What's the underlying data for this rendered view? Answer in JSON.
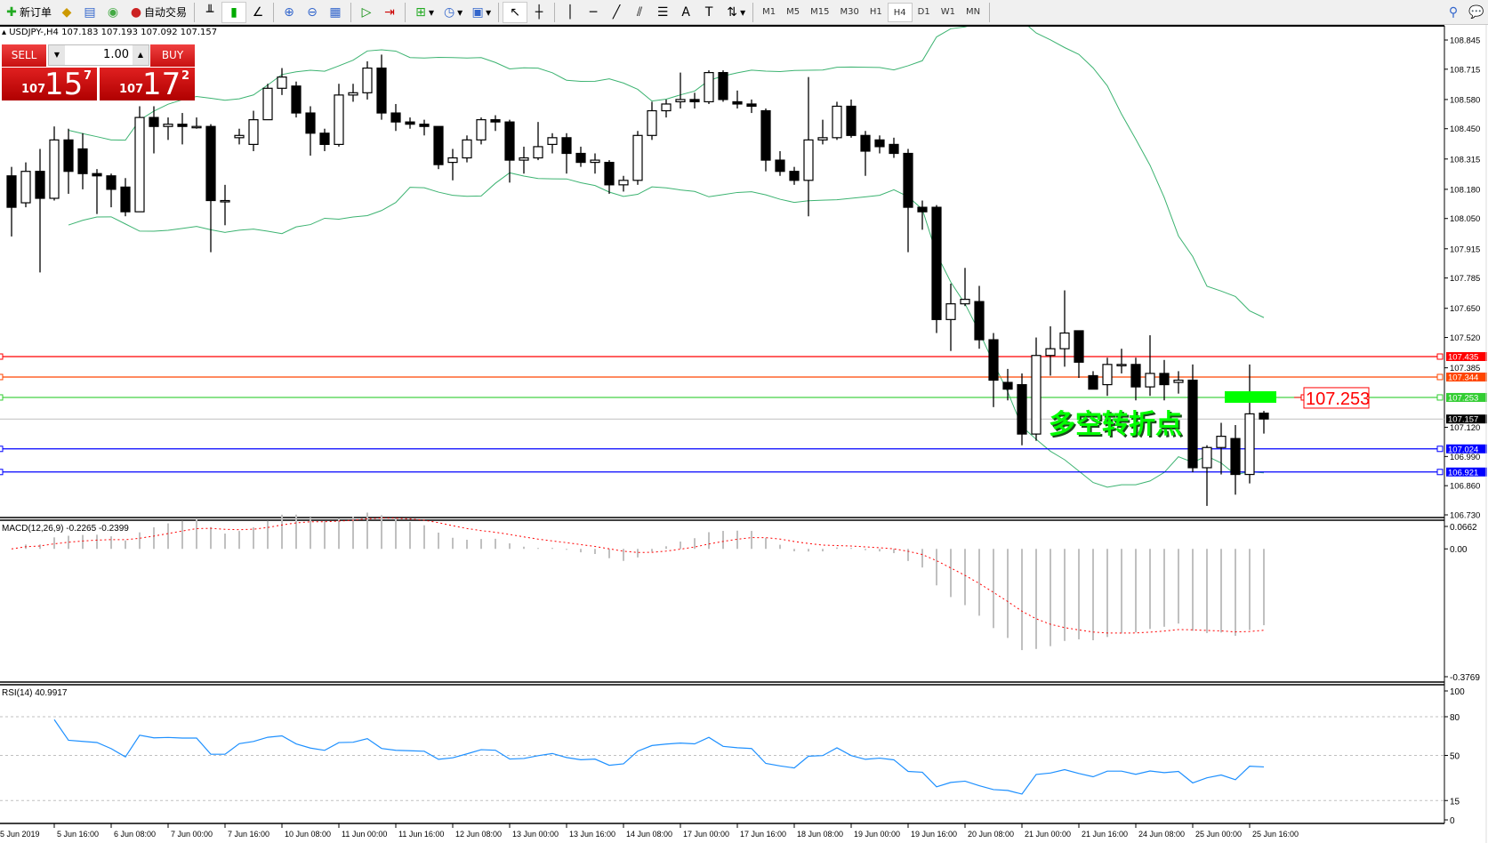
{
  "toolbar": {
    "new_order": "新订单",
    "auto_trading": "自动交易",
    "timeframes": [
      "M1",
      "M5",
      "M15",
      "M30",
      "H1",
      "H4",
      "D1",
      "W1",
      "MN"
    ],
    "active_timeframe": "H4"
  },
  "header": {
    "symbol": "USDJPY-,H4",
    "open": "107.183",
    "high": "107.193",
    "low": "107.092",
    "close": "107.157"
  },
  "one_click": {
    "sell_label": "SELL",
    "buy_label": "BUY",
    "lot": "1.00",
    "sell_price": {
      "big": "107",
      "main": "15",
      "small": "7"
    },
    "buy_price": {
      "big": "107",
      "main": "17",
      "small": "2"
    }
  },
  "indicators": {
    "macd_label": "MACD(12,26,9) -0.2265 -0.2399",
    "rsi_label": "RSI(14) 40.9917"
  },
  "annotation": {
    "text": "多空转折点",
    "price_label": "107.253",
    "color": "#00ff00"
  },
  "chart_data": {
    "type": "candlestick",
    "symbol": "USDJPY",
    "timeframe": "H4",
    "ylim": [
      106.73,
      108.845
    ],
    "price_ticks": [
      "108.845",
      "108.715",
      "108.580",
      "108.450",
      "108.315",
      "108.180",
      "108.050",
      "107.915",
      "107.785",
      "107.650",
      "107.520",
      "107.385",
      "107.120",
      "106.990",
      "106.860",
      "106.730"
    ],
    "time_labels": [
      "5 Jun 2019",
      "5 Jun 16:00",
      "6 Jun 08:00",
      "7 Jun 00:00",
      "7 Jun 16:00",
      "10 Jun 08:00",
      "11 Jun 00:00",
      "11 Jun 16:00",
      "12 Jun 08:00",
      "13 Jun 00:00",
      "13 Jun 16:00",
      "14 Jun 08:00",
      "17 Jun 00:00",
      "17 Jun 16:00",
      "18 Jun 08:00",
      "19 Jun 00:00",
      "19 Jun 16:00",
      "20 Jun 08:00",
      "21 Jun 00:00",
      "21 Jun 16:00",
      "24 Jun 08:00",
      "25 Jun 00:00",
      "25 Jun 16:00"
    ],
    "ohlc": [
      [
        108.24,
        108.28,
        107.97,
        108.1
      ],
      [
        108.12,
        108.3,
        108.1,
        108.26
      ],
      [
        108.26,
        108.36,
        107.81,
        108.14
      ],
      [
        108.14,
        108.46,
        108.13,
        108.4
      ],
      [
        108.4,
        108.45,
        108.16,
        108.26
      ],
      [
        108.36,
        108.43,
        108.18,
        108.25
      ],
      [
        108.25,
        108.27,
        108.07,
        108.24
      ],
      [
        108.24,
        108.25,
        108.1,
        108.18
      ],
      [
        108.19,
        108.23,
        108.06,
        108.08
      ],
      [
        108.08,
        108.55,
        108.08,
        108.5
      ],
      [
        108.5,
        108.55,
        108.34,
        108.46
      ],
      [
        108.46,
        108.5,
        108.4,
        108.47
      ],
      [
        108.47,
        108.52,
        108.38,
        108.46
      ],
      [
        108.46,
        108.5,
        108.45,
        108.46
      ],
      [
        108.46,
        108.47,
        107.9,
        108.13
      ],
      [
        108.13,
        108.2,
        108.02,
        108.13
      ],
      [
        108.41,
        108.45,
        108.38,
        108.42
      ],
      [
        108.38,
        108.53,
        108.35,
        108.49
      ],
      [
        108.49,
        108.65,
        108.49,
        108.63
      ],
      [
        108.63,
        108.72,
        108.6,
        108.68
      ],
      [
        108.64,
        108.66,
        108.5,
        108.52
      ],
      [
        108.52,
        108.55,
        108.33,
        108.43
      ],
      [
        108.43,
        108.45,
        108.35,
        108.38
      ],
      [
        108.38,
        108.65,
        108.37,
        108.6
      ],
      [
        108.6,
        108.65,
        108.57,
        108.61
      ],
      [
        108.61,
        108.75,
        108.58,
        108.72
      ],
      [
        108.72,
        108.78,
        108.49,
        108.52
      ],
      [
        108.52,
        108.56,
        108.44,
        108.48
      ],
      [
        108.48,
        108.5,
        108.45,
        108.47
      ],
      [
        108.47,
        108.49,
        108.42,
        108.46
      ],
      [
        108.46,
        108.46,
        108.27,
        108.29
      ],
      [
        108.3,
        108.36,
        108.22,
        108.32
      ],
      [
        108.32,
        108.42,
        108.3,
        108.4
      ],
      [
        108.4,
        108.5,
        108.38,
        108.49
      ],
      [
        108.49,
        108.51,
        108.44,
        108.48
      ],
      [
        108.48,
        108.49,
        108.21,
        108.31
      ],
      [
        108.31,
        108.37,
        108.25,
        108.32
      ],
      [
        108.32,
        108.48,
        108.31,
        108.37
      ],
      [
        108.38,
        108.43,
        108.34,
        108.41
      ],
      [
        108.41,
        108.43,
        108.25,
        108.34
      ],
      [
        108.34,
        108.37,
        108.28,
        108.3
      ],
      [
        108.3,
        108.34,
        108.25,
        108.31
      ],
      [
        108.3,
        108.31,
        108.16,
        108.2
      ],
      [
        108.2,
        108.24,
        108.17,
        108.22
      ],
      [
        108.22,
        108.44,
        108.2,
        108.42
      ],
      [
        108.42,
        108.57,
        108.4,
        108.53
      ],
      [
        108.53,
        108.58,
        108.5,
        108.56
      ],
      [
        108.57,
        108.7,
        108.54,
        108.58
      ],
      [
        108.58,
        108.61,
        108.54,
        108.57
      ],
      [
        108.57,
        108.71,
        108.56,
        108.7
      ],
      [
        108.7,
        108.71,
        108.57,
        108.58
      ],
      [
        108.57,
        108.62,
        108.54,
        108.56
      ],
      [
        108.56,
        108.58,
        108.52,
        108.55
      ],
      [
        108.53,
        108.54,
        108.26,
        108.31
      ],
      [
        108.31,
        108.35,
        108.24,
        108.26
      ],
      [
        108.26,
        108.28,
        108.2,
        108.22
      ],
      [
        108.22,
        108.68,
        108.06,
        108.4
      ],
      [
        108.4,
        108.49,
        108.38,
        108.41
      ],
      [
        108.41,
        108.57,
        108.4,
        108.55
      ],
      [
        108.55,
        108.58,
        108.41,
        108.42
      ],
      [
        108.42,
        108.44,
        108.24,
        108.35
      ],
      [
        108.4,
        108.42,
        108.34,
        108.37
      ],
      [
        108.38,
        108.41,
        108.32,
        108.34
      ],
      [
        108.34,
        108.36,
        107.9,
        108.1
      ],
      [
        108.1,
        108.13,
        108.0,
        108.08
      ],
      [
        108.1,
        108.11,
        107.54,
        107.6
      ],
      [
        107.6,
        107.76,
        107.46,
        107.67
      ],
      [
        107.67,
        107.83,
        107.66,
        107.69
      ],
      [
        107.68,
        107.75,
        107.47,
        107.51
      ],
      [
        107.51,
        107.54,
        107.21,
        107.33
      ],
      [
        107.32,
        107.38,
        107.24,
        107.29
      ],
      [
        107.31,
        107.36,
        107.04,
        107.09
      ],
      [
        107.09,
        107.52,
        107.06,
        107.44
      ],
      [
        107.44,
        107.57,
        107.35,
        107.47
      ],
      [
        107.47,
        107.73,
        107.39,
        107.54
      ],
      [
        107.55,
        107.55,
        107.34,
        107.41
      ],
      [
        107.35,
        107.37,
        107.29,
        107.29
      ],
      [
        107.31,
        107.43,
        107.26,
        107.4
      ],
      [
        107.4,
        107.47,
        107.36,
        107.4
      ],
      [
        107.4,
        107.43,
        107.24,
        107.3
      ],
      [
        107.3,
        107.53,
        107.26,
        107.36
      ],
      [
        107.36,
        107.42,
        107.24,
        107.31
      ],
      [
        107.32,
        107.37,
        107.27,
        107.33
      ],
      [
        107.33,
        107.4,
        106.92,
        106.94
      ],
      [
        106.94,
        107.04,
        106.77,
        107.03
      ],
      [
        107.03,
        107.14,
        106.91,
        107.08
      ],
      [
        107.07,
        107.13,
        106.82,
        106.91
      ],
      [
        106.91,
        107.4,
        106.87,
        107.18
      ],
      [
        107.183,
        107.193,
        107.092,
        107.157
      ]
    ],
    "hlines": [
      {
        "price": "107.435",
        "color": "#ff0000"
      },
      {
        "price": "107.344",
        "color": "#ff4500"
      },
      {
        "price": "107.253",
        "color": "#32cd32"
      },
      {
        "price": "107.024",
        "color": "#0000ff"
      },
      {
        "price": "106.921",
        "color": "#0000ff"
      }
    ],
    "bid": {
      "price": "107.157",
      "color": "#000000"
    },
    "bollinger_color": "#3cb371",
    "macd": {
      "ylim": [
        -0.3769,
        0.0662
      ],
      "ticks": [
        "0.0662",
        "0.00",
        "-0.3769"
      ],
      "histogram_color": "#c0c0c0",
      "signal_color": "#ff0000"
    },
    "rsi": {
      "ylim": [
        0,
        100
      ],
      "ticks": [
        "100",
        "80",
        "50",
        "15",
        "0"
      ],
      "levels": [
        80,
        50,
        15
      ],
      "color": "#1e90ff"
    }
  }
}
